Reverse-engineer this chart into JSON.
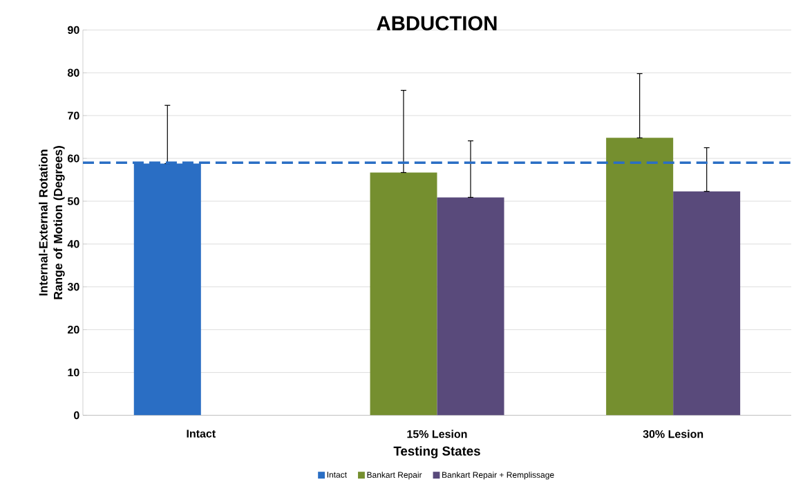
{
  "chart_data": {
    "type": "bar",
    "title": "ABDUCTION",
    "xlabel": "Testing States",
    "ylabel": "Internal-External Rotation Range of Motion (Degrees)",
    "categories": [
      "Intact",
      "15% Lesion",
      "30% Lesion"
    ],
    "series": [
      {
        "name": "Intact",
        "color": "#2a6ec4",
        "values": [
          58.8,
          null,
          null
        ],
        "errors": [
          [
            58.8,
            72.4
          ],
          null,
          null
        ]
      },
      {
        "name": "Bankart Repair",
        "color": "#758f2f",
        "values": [
          null,
          56.7,
          64.8
        ],
        "errors": [
          null,
          [
            56.7,
            75.9
          ],
          [
            64.8,
            79.8
          ]
        ]
      },
      {
        "name": "Bankart Repair + Remplissage",
        "color": "#594a7b",
        "values": [
          null,
          50.9,
          52.3
        ],
        "errors": [
          null,
          [
            50.9,
            64.1
          ],
          [
            52.3,
            62.5
          ]
        ]
      }
    ],
    "ylim": [
      0,
      90
    ],
    "yticks": [
      0,
      10,
      20,
      30,
      40,
      50,
      60,
      70,
      80,
      90
    ],
    "grid": "y",
    "legend": "bottom",
    "ref_lines": [
      {
        "axis": "y",
        "value": 59.0,
        "color": "#2a6ec4",
        "line_style": "dashed"
      }
    ]
  }
}
